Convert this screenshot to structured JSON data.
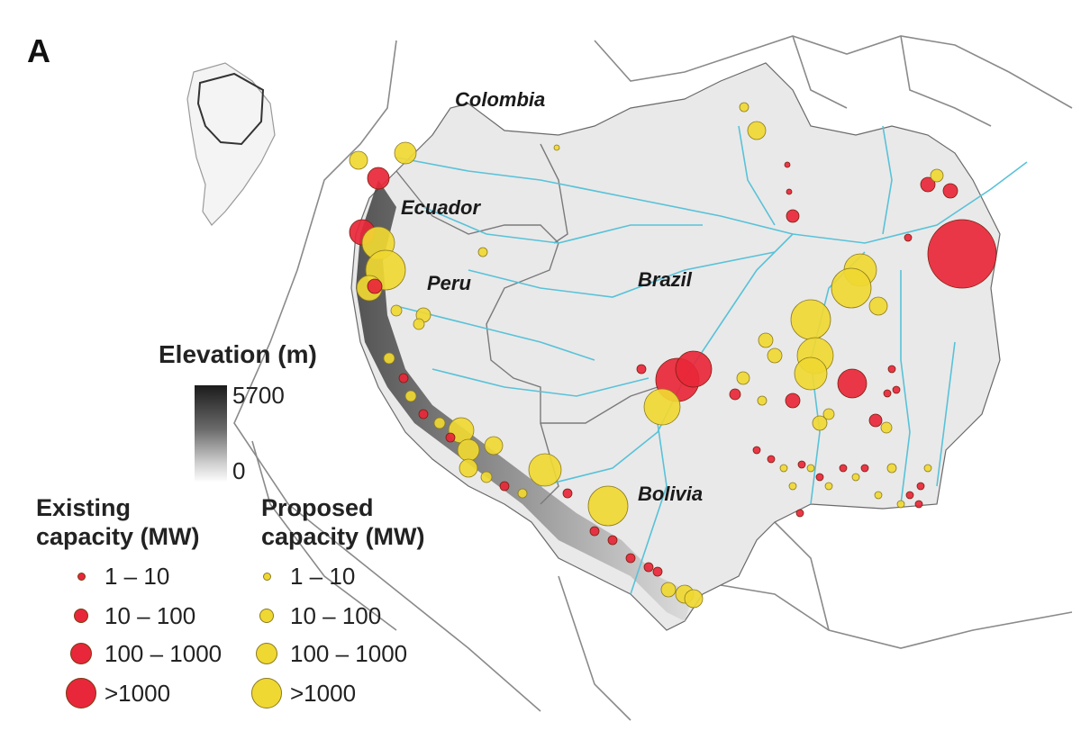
{
  "panel_label": "A",
  "countries": [
    "Colombia",
    "Ecuador",
    "Peru",
    "Brazil",
    "Bolivia"
  ],
  "elevation_legend": {
    "title": "Elevation (m)",
    "max": "5700",
    "min": "0"
  },
  "existing_legend": {
    "title_line1": "Existing",
    "title_line2": "capacity (MW)",
    "color": "#e8273a",
    "classes": [
      "1 – 10",
      "10 – 100",
      "100 – 1000",
      ">1000"
    ]
  },
  "proposed_legend": {
    "title_line1": "Proposed",
    "title_line2": "capacity (MW)",
    "color": "#f0d832",
    "classes": [
      "1 – 10",
      "10 – 100",
      "100 – 1000",
      ">1000"
    ]
  }
}
